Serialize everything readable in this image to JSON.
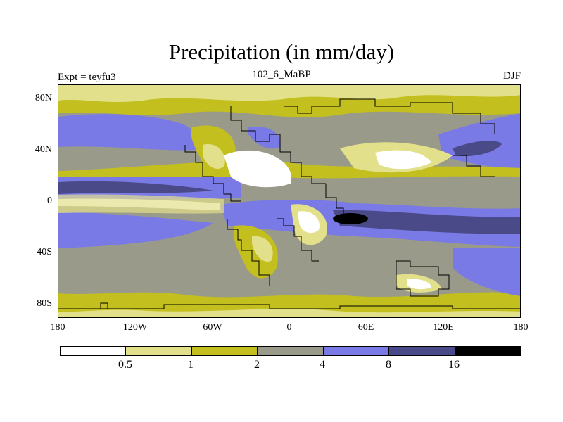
{
  "title": "Precipitation (in mm/day)",
  "experiment_label": "Expt = teyfu3",
  "period_label": "102_6_MaBP",
  "season_label": "DJF",
  "y_ticks": [
    "80N",
    "40N",
    "0",
    "40S",
    "80S"
  ],
  "x_ticks": [
    "180",
    "120W",
    "60W",
    "0",
    "60E",
    "120E",
    "180"
  ],
  "colorbar": {
    "levels": [
      "0.5",
      "1",
      "2",
      "4",
      "8",
      "16"
    ],
    "colors": [
      "#ffffff",
      "#e2e08a",
      "#c2bf1e",
      "#9a9a8a",
      "#7a7ae6",
      "#4a4a88",
      "#000000"
    ]
  }
}
